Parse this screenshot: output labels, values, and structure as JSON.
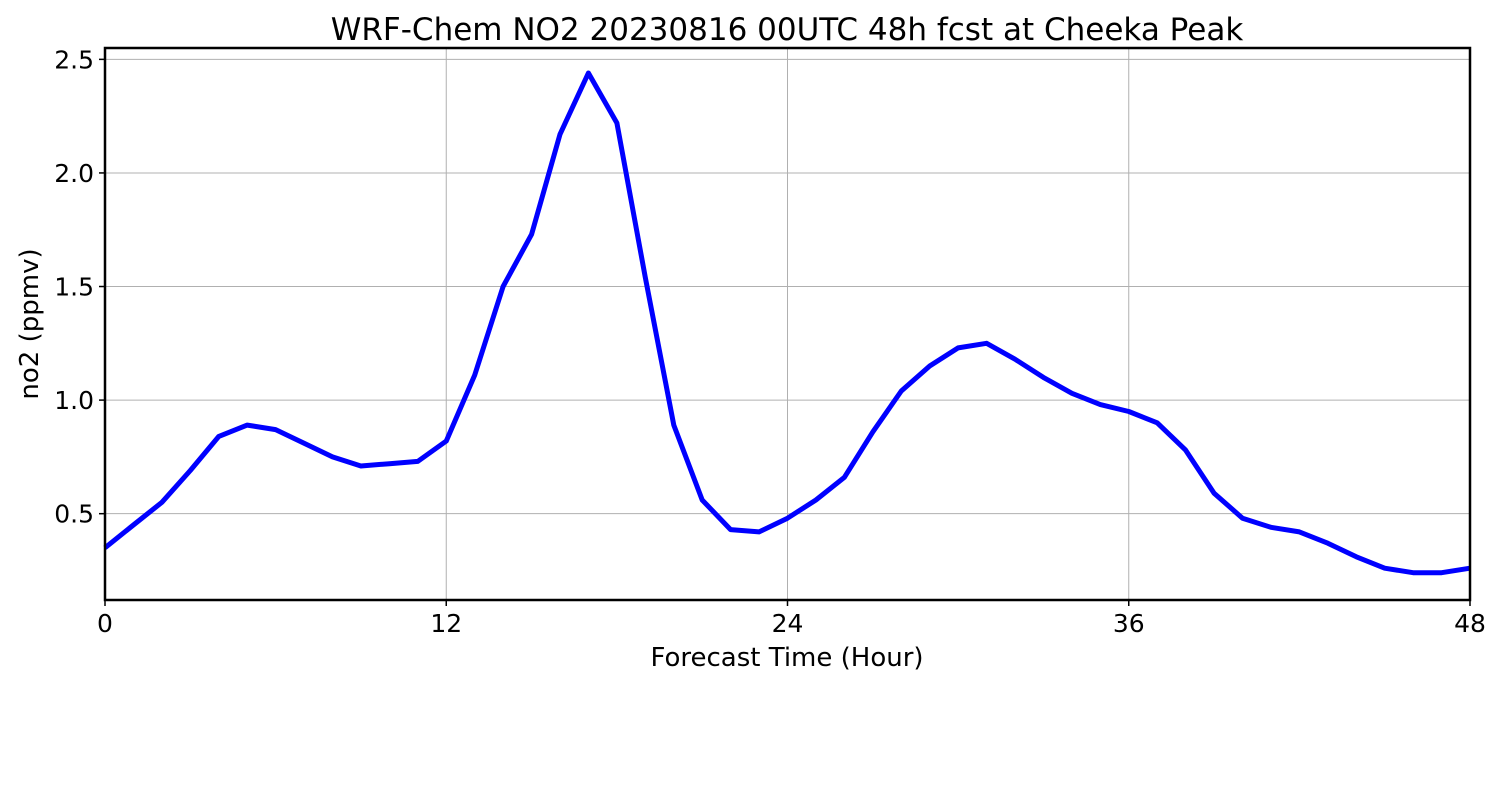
{
  "chart_data": {
    "type": "line",
    "title": "WRF-Chem NO2  20230816 00UTC 48h fcst at Cheeka Peak",
    "xlabel": "Forecast Time (Hour)",
    "ylabel": "no2  (ppmv)",
    "xlim": [
      0,
      48
    ],
    "ylim": [
      0.12,
      2.55
    ],
    "xticks": [
      0,
      12,
      24,
      36,
      48
    ],
    "xtick_labels": [
      "0",
      "12",
      "24",
      "36",
      "48"
    ],
    "yticks": [
      0.5,
      1.0,
      1.5,
      2.0,
      2.5
    ],
    "ytick_labels": [
      "0.5",
      "1.0",
      "1.5",
      "2.0",
      "2.5"
    ],
    "grid": true,
    "series": [
      {
        "color": "#0000ff",
        "x": [
          0,
          1,
          2,
          3,
          4,
          5,
          6,
          7,
          8,
          9,
          10,
          11,
          12,
          13,
          14,
          15,
          16,
          17,
          18,
          19,
          20,
          21,
          22,
          23,
          24,
          25,
          26,
          27,
          28,
          29,
          30,
          31,
          32,
          33,
          34,
          35,
          36,
          37,
          38,
          39,
          40,
          41,
          42,
          43,
          44,
          45,
          46,
          47,
          48
        ],
        "y": [
          0.35,
          0.45,
          0.55,
          0.69,
          0.84,
          0.89,
          0.87,
          0.81,
          0.75,
          0.71,
          0.72,
          0.73,
          0.82,
          1.11,
          1.5,
          1.73,
          2.17,
          2.44,
          2.22,
          1.54,
          0.89,
          0.56,
          0.43,
          0.42,
          0.48,
          0.56,
          0.66,
          0.86,
          1.04,
          1.15,
          1.23,
          1.25,
          1.18,
          1.1,
          1.03,
          0.98,
          0.95,
          0.9,
          0.78,
          0.59,
          0.48,
          0.44,
          0.42,
          0.37,
          0.31,
          0.26,
          0.24,
          0.24,
          0.26
        ]
      }
    ]
  }
}
